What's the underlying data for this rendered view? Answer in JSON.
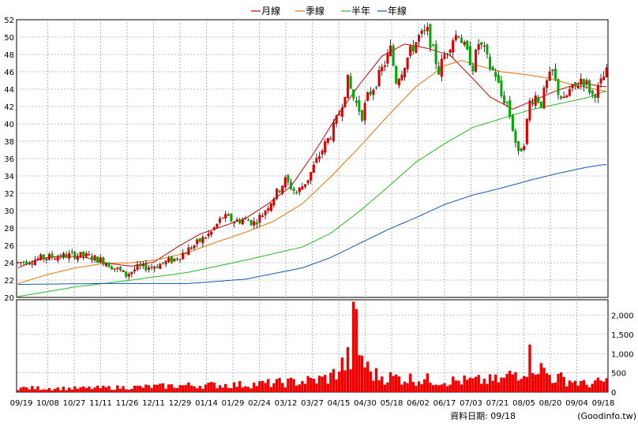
{
  "chart_data": {
    "type": "candlestick",
    "x_ticks": [
      "09/19",
      "10/08",
      "10/27",
      "11/11",
      "11/26",
      "12/11",
      "12/29",
      "01/14",
      "01/29",
      "02/24",
      "03/12",
      "03/27",
      "04/15",
      "04/30",
      "05/18",
      "06/02",
      "06/17",
      "07/03",
      "07/21",
      "08/05",
      "08/20",
      "09/04",
      "09/18"
    ],
    "price_axis": {
      "ylim": [
        20,
        52
      ],
      "ticks": [
        20,
        22,
        24,
        26,
        28,
        30,
        32,
        34,
        36,
        38,
        40,
        42,
        44,
        46,
        48,
        50,
        52
      ]
    },
    "volume_axis": {
      "ylim": [
        0,
        2400
      ],
      "ticks": [
        0,
        500,
        1000,
        1500,
        2000
      ],
      "tick_labels": [
        "0",
        "500",
        "1,000",
        "1,500",
        "2,000"
      ]
    },
    "grid": true,
    "legend": {
      "placement": "top-center",
      "items": [
        {
          "name": "月線",
          "color": "#cc0000"
        },
        {
          "name": "季線",
          "color": "#e87000"
        },
        {
          "name": "半年",
          "color": "#22bb22"
        },
        {
          "name": "年線",
          "color": "#1155bb"
        }
      ]
    },
    "ma_series": [
      {
        "name": "月線",
        "color": "#cc0000",
        "points": [
          [
            0,
            23.4
          ],
          [
            8,
            24.5
          ],
          [
            16,
            24.8
          ],
          [
            24,
            24.6
          ],
          [
            32,
            23.9
          ],
          [
            40,
            23.6
          ],
          [
            48,
            24.1
          ],
          [
            56,
            25.8
          ],
          [
            64,
            27.3
          ],
          [
            72,
            28.2
          ],
          [
            80,
            29.1
          ],
          [
            88,
            30.8
          ],
          [
            96,
            32.8
          ],
          [
            104,
            36.6
          ],
          [
            112,
            40.8
          ],
          [
            120,
            44.5
          ],
          [
            128,
            47.8
          ],
          [
            136,
            49.2
          ],
          [
            144,
            48.7
          ],
          [
            152,
            47.9
          ],
          [
            160,
            45.2
          ],
          [
            166,
            43.1
          ],
          [
            174,
            41.7
          ],
          [
            182,
            42.8
          ],
          [
            190,
            43.9
          ],
          [
            198,
            44.7
          ],
          [
            206,
            44.3
          ]
        ]
      },
      {
        "name": "季線",
        "color": "#e87000",
        "points": [
          [
            0,
            21.6
          ],
          [
            10,
            22.6
          ],
          [
            20,
            23.4
          ],
          [
            30,
            23.9
          ],
          [
            40,
            24.0
          ],
          [
            50,
            24.4
          ],
          [
            60,
            25.2
          ],
          [
            70,
            26.4
          ],
          [
            80,
            27.5
          ],
          [
            90,
            28.8
          ],
          [
            100,
            30.8
          ],
          [
            110,
            33.9
          ],
          [
            120,
            37.3
          ],
          [
            130,
            40.9
          ],
          [
            140,
            44.3
          ],
          [
            150,
            46.7
          ],
          [
            156,
            47.3
          ],
          [
            162,
            46.7
          ],
          [
            170,
            46.0
          ],
          [
            178,
            45.7
          ],
          [
            186,
            45.3
          ],
          [
            194,
            44.6
          ],
          [
            200,
            44.2
          ],
          [
            206,
            43.8
          ]
        ]
      },
      {
        "name": "半年",
        "color": "#22bb22",
        "points": [
          [
            0,
            20.1
          ],
          [
            20,
            21.2
          ],
          [
            40,
            22.0
          ],
          [
            60,
            22.9
          ],
          [
            80,
            24.3
          ],
          [
            100,
            25.8
          ],
          [
            110,
            27.4
          ],
          [
            120,
            29.9
          ],
          [
            130,
            32.7
          ],
          [
            140,
            35.6
          ],
          [
            150,
            37.7
          ],
          [
            160,
            39.6
          ],
          [
            170,
            40.6
          ],
          [
            180,
            41.6
          ],
          [
            190,
            42.3
          ],
          [
            200,
            43.0
          ],
          [
            206,
            43.7
          ]
        ]
      },
      {
        "name": "年線",
        "color": "#1155bb",
        "points": [
          [
            0,
            21.5
          ],
          [
            30,
            21.6
          ],
          [
            60,
            21.6
          ],
          [
            80,
            22.1
          ],
          [
            100,
            23.4
          ],
          [
            110,
            24.6
          ],
          [
            120,
            26.2
          ],
          [
            130,
            27.8
          ],
          [
            140,
            29.2
          ],
          [
            150,
            30.7
          ],
          [
            160,
            31.8
          ],
          [
            170,
            32.6
          ],
          [
            180,
            33.5
          ],
          [
            190,
            34.3
          ],
          [
            200,
            35.0
          ],
          [
            206,
            35.3
          ]
        ]
      }
    ],
    "price_anchors": [
      [
        0,
        24.0
      ],
      [
        10,
        24.6
      ],
      [
        20,
        24.9
      ],
      [
        25,
        24.7
      ],
      [
        30,
        24.2
      ],
      [
        35,
        23.2
      ],
      [
        38,
        22.6
      ],
      [
        42,
        23.4
      ],
      [
        48,
        23.6
      ],
      [
        55,
        24.4
      ],
      [
        62,
        26.0
      ],
      [
        68,
        27.5
      ],
      [
        72,
        29.3
      ],
      [
        76,
        28.8
      ],
      [
        80,
        29.0
      ],
      [
        83,
        28.6
      ],
      [
        86,
        29.6
      ],
      [
        90,
        31.6
      ],
      [
        94,
        33.5
      ],
      [
        98,
        32.0
      ],
      [
        102,
        33.7
      ],
      [
        106,
        36.4
      ],
      [
        110,
        38.8
      ],
      [
        113,
        41.2
      ],
      [
        116,
        45.0
      ],
      [
        118,
        43.0
      ],
      [
        121,
        41.0
      ],
      [
        123,
        43.1
      ],
      [
        126,
        44.8
      ],
      [
        129,
        47.0
      ],
      [
        131,
        48.6
      ],
      [
        133,
        45.0
      ],
      [
        135,
        46.2
      ],
      [
        138,
        48.3
      ],
      [
        141,
        50.0
      ],
      [
        144,
        50.6
      ],
      [
        146,
        48.3
      ],
      [
        148,
        46.1
      ],
      [
        150,
        47.9
      ],
      [
        153,
        49.9
      ],
      [
        155,
        50.5
      ],
      [
        157,
        48.8
      ],
      [
        160,
        46.6
      ],
      [
        162,
        49.3
      ],
      [
        164,
        48.4
      ],
      [
        166,
        46.5
      ],
      [
        168,
        45.7
      ],
      [
        170,
        43.2
      ],
      [
        172,
        42.4
      ],
      [
        174,
        39.5
      ],
      [
        176,
        36.4
      ],
      [
        178,
        38.0
      ],
      [
        180,
        42.5
      ],
      [
        182,
        43.2
      ],
      [
        184,
        42.4
      ],
      [
        186,
        44.7
      ],
      [
        188,
        46.0
      ],
      [
        190,
        43.7
      ],
      [
        192,
        42.6
      ],
      [
        194,
        43.8
      ],
      [
        196,
        44.2
      ],
      [
        198,
        45.2
      ],
      [
        200,
        44.6
      ],
      [
        202,
        43.3
      ],
      [
        204,
        44.0
      ],
      [
        206,
        45.4
      ],
      [
        207,
        45.9
      ]
    ],
    "volume_anchors": [
      [
        0,
        110
      ],
      [
        20,
        100
      ],
      [
        40,
        130
      ],
      [
        60,
        180
      ],
      [
        80,
        200
      ],
      [
        95,
        260
      ],
      [
        105,
        320
      ],
      [
        110,
        400
      ],
      [
        114,
        700
      ],
      [
        117,
        900
      ],
      [
        118,
        2350
      ],
      [
        120,
        1100
      ],
      [
        123,
        600
      ],
      [
        126,
        450
      ],
      [
        130,
        400
      ],
      [
        140,
        350
      ],
      [
        150,
        300
      ],
      [
        160,
        300
      ],
      [
        170,
        320
      ],
      [
        178,
        650
      ],
      [
        180,
        900
      ],
      [
        182,
        800
      ],
      [
        184,
        600
      ],
      [
        188,
        400
      ],
      [
        195,
        300
      ],
      [
        200,
        200
      ],
      [
        207,
        300
      ]
    ]
  },
  "footer": {
    "label": "資料日期: 09/18",
    "source": "(Goodinfo.tw)"
  }
}
